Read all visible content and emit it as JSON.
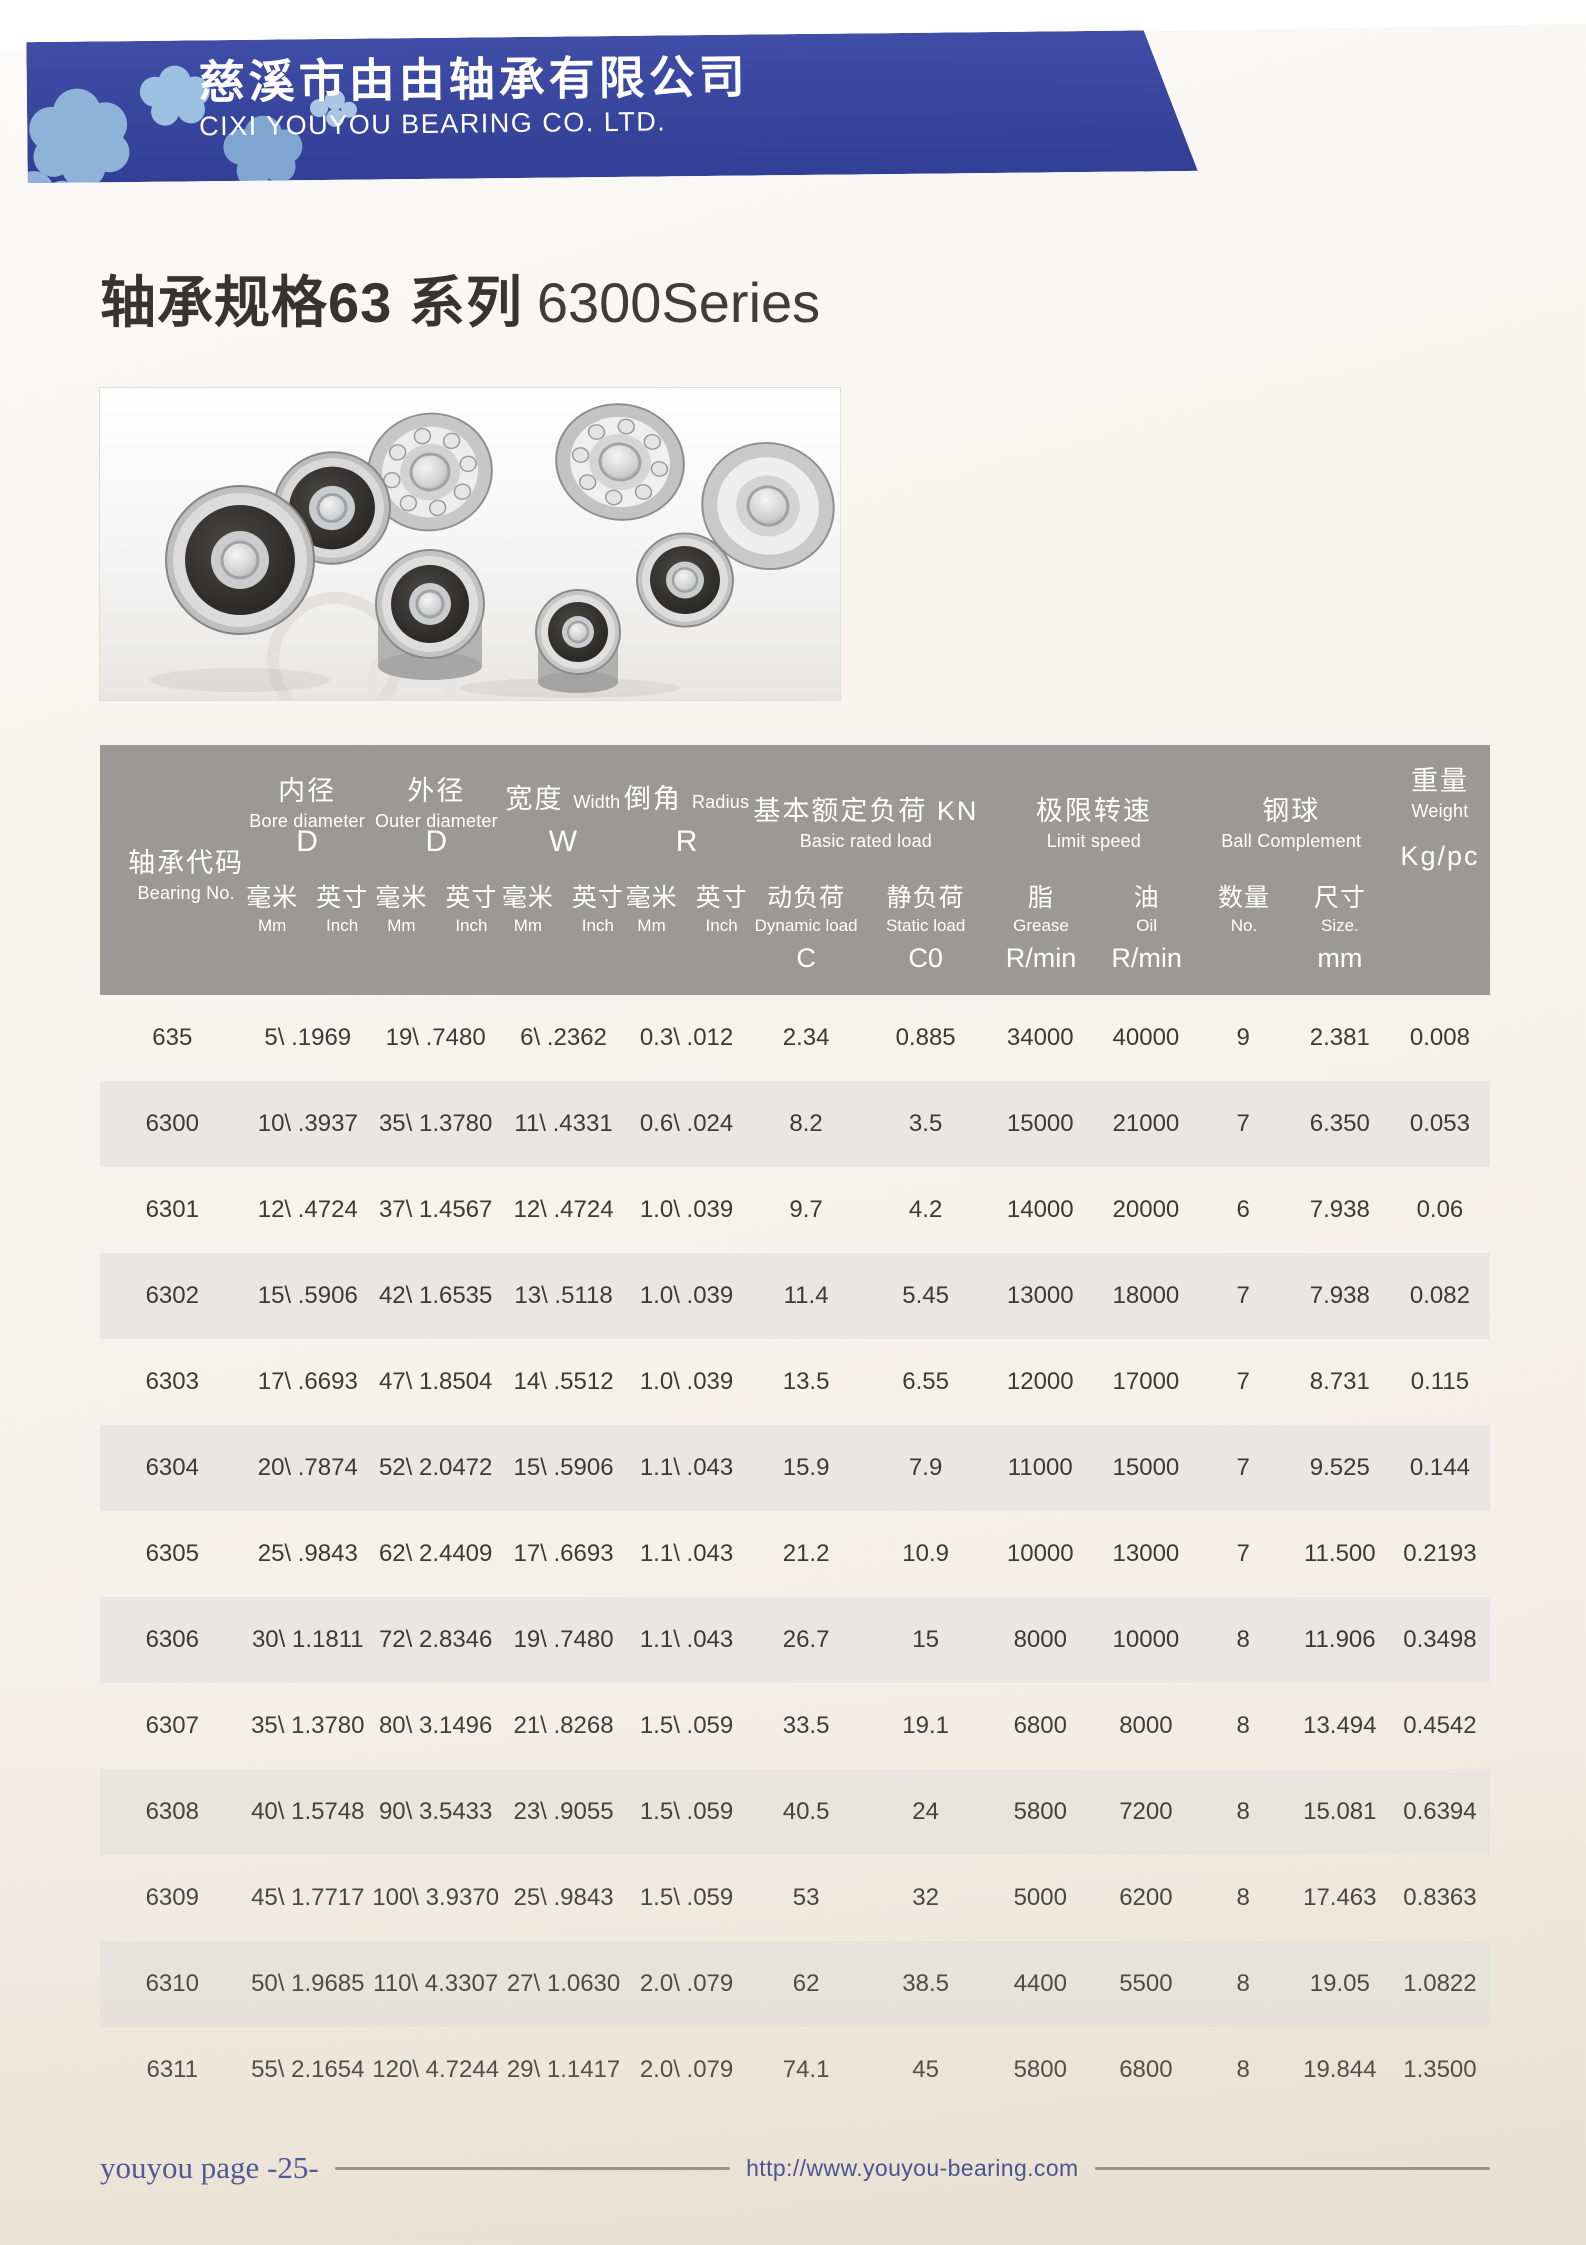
{
  "banner": {
    "company_cn": "慈溪市由由轴承有限公司",
    "company_en": "CIXI YOUYOU BEARING CO. LTD.",
    "colors": {
      "banner_blue": "#38459d",
      "cloud_blue": "#8fb2d8"
    }
  },
  "page_title": {
    "cn": "轴承规格63 系列",
    "en": "6300Series"
  },
  "table": {
    "header_bg": "#9b9997",
    "bearing_no": {
      "cn": "轴承代码",
      "en": "Bearing No."
    },
    "groups": {
      "bore": {
        "cn": "内径",
        "en": "Bore diameter",
        "symbol": "D"
      },
      "outer": {
        "cn": "外径",
        "en": "Outer diameter",
        "symbol": "D"
      },
      "width": {
        "cn": "宽度",
        "en": "Width",
        "symbol": "W"
      },
      "radius": {
        "cn": "倒角",
        "en": "Radius",
        "symbol": "R"
      },
      "load": {
        "cn": "基本额定负荷 KN",
        "en": "Basic rated load"
      },
      "speed": {
        "cn": "极限转速",
        "en": "Limit speed"
      },
      "ball": {
        "cn": "钢球",
        "en": "Ball Complement"
      },
      "weight": {
        "cn": "重量",
        "en": "Weight",
        "unit": "Kg/pc"
      }
    },
    "subheads": {
      "mm_cn": "毫米",
      "mm_en": "Mm",
      "inch_cn": "英寸",
      "inch_en": "Inch",
      "dynamic": {
        "cn": "动负荷",
        "en": "Dynamic load",
        "symbol": "C"
      },
      "static": {
        "cn": "静负荷",
        "en": "Static load",
        "symbol": "C0"
      },
      "grease": {
        "cn": "脂",
        "en": "Grease",
        "unit": "R/min"
      },
      "oil": {
        "cn": "油",
        "en": "Oil",
        "unit": "R/min"
      },
      "ball_no": {
        "cn": "数量",
        "en": "No."
      },
      "ball_size": {
        "cn": "尺寸",
        "en": "Size.",
        "unit": "mm"
      }
    },
    "rows": [
      [
        "635",
        "5\\ .1969",
        "19\\ .7480",
        "6\\ .2362",
        "0.3\\ .012",
        "2.34",
        "0.885",
        "34000",
        "40000",
        "9",
        "2.381",
        "0.008"
      ],
      [
        "6300",
        "10\\ .3937",
        "35\\ 1.3780",
        "11\\ .4331",
        "0.6\\ .024",
        "8.2",
        "3.5",
        "15000",
        "21000",
        "7",
        "6.350",
        "0.053"
      ],
      [
        "6301",
        "12\\ .4724",
        "37\\ 1.4567",
        "12\\ .4724",
        "1.0\\ .039",
        "9.7",
        "4.2",
        "14000",
        "20000",
        "6",
        "7.938",
        "0.06"
      ],
      [
        "6302",
        "15\\ .5906",
        "42\\ 1.6535",
        "13\\ .5118",
        "1.0\\ .039",
        "11.4",
        "5.45",
        "13000",
        "18000",
        "7",
        "7.938",
        "0.082"
      ],
      [
        "6303",
        "17\\ .6693",
        "47\\ 1.8504",
        "14\\ .5512",
        "1.0\\ .039",
        "13.5",
        "6.55",
        "12000",
        "17000",
        "7",
        "8.731",
        "0.115"
      ],
      [
        "6304",
        "20\\ .7874",
        "52\\ 2.0472",
        "15\\ .5906",
        "1.1\\ .043",
        "15.9",
        "7.9",
        "11000",
        "15000",
        "7",
        "9.525",
        "0.144"
      ],
      [
        "6305",
        "25\\ .9843",
        "62\\ 2.4409",
        "17\\ .6693",
        "1.1\\ .043",
        "21.2",
        "10.9",
        "10000",
        "13000",
        "7",
        "11.500",
        "0.2193"
      ],
      [
        "6306",
        "30\\ 1.1811",
        "72\\ 2.8346",
        "19\\ .7480",
        "1.1\\ .043",
        "26.7",
        "15",
        "8000",
        "10000",
        "8",
        "11.906",
        "0.3498"
      ],
      [
        "6307",
        "35\\ 1.3780",
        "80\\ 3.1496",
        "21\\ .8268",
        "1.5\\ .059",
        "33.5",
        "19.1",
        "6800",
        "8000",
        "8",
        "13.494",
        "0.4542"
      ],
      [
        "6308",
        "40\\ 1.5748",
        "90\\ 3.5433",
        "23\\ .9055",
        "1.5\\ .059",
        "40.5",
        "24",
        "5800",
        "7200",
        "8",
        "15.081",
        "0.6394"
      ],
      [
        "6309",
        "45\\ 1.7717",
        "100\\ 3.9370",
        "25\\ .9843",
        "1.5\\ .059",
        "53",
        "32",
        "5000",
        "6200",
        "8",
        "17.463",
        "0.8363"
      ],
      [
        "6310",
        "50\\ 1.9685",
        "110\\ 4.3307",
        "27\\ 1.0630",
        "2.0\\ .079",
        "62",
        "38.5",
        "4400",
        "5500",
        "8",
        "19.05",
        "1.0822"
      ],
      [
        "6311",
        "55\\ 2.1654",
        "120\\ 4.7244",
        "29\\ 1.1417",
        "2.0\\ .079",
        "74.1",
        "45",
        "5800",
        "6800",
        "8",
        "19.844",
        "1.3500"
      ]
    ]
  },
  "footer": {
    "page_label": "youyou page -25-",
    "url": "http://www.youyou-bearing.com"
  }
}
